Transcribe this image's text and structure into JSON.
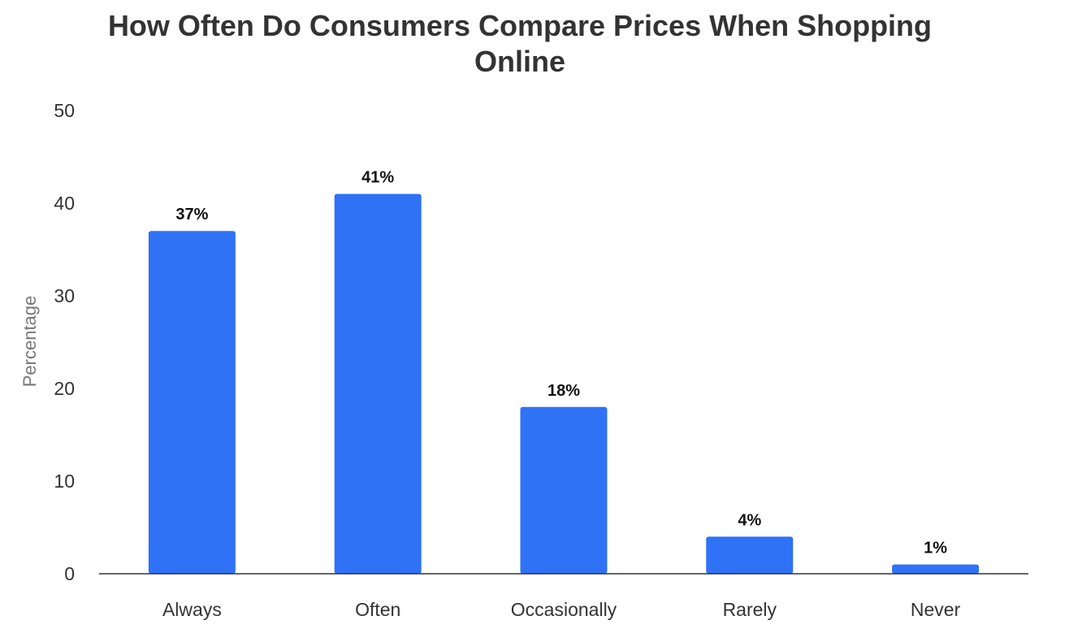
{
  "chart_data": {
    "type": "bar",
    "title_lines": [
      "How Often Do Consumers Compare Prices When Shopping",
      "Online"
    ],
    "xlabel": "",
    "ylabel": "Percentage",
    "ylim": [
      0,
      50
    ],
    "yticks": [
      "0",
      "10",
      "20",
      "30",
      "40",
      "50"
    ],
    "grid": false,
    "categories": [
      "Always",
      "Often",
      "Occasionally",
      "Rarely",
      "Never"
    ],
    "values": [
      37,
      41,
      18,
      4,
      1
    ],
    "data_labels": [
      "37%",
      "41%",
      "18%",
      "4%",
      "1%"
    ],
    "bar_color": "#2f72f6",
    "axis_color": "#333333"
  }
}
